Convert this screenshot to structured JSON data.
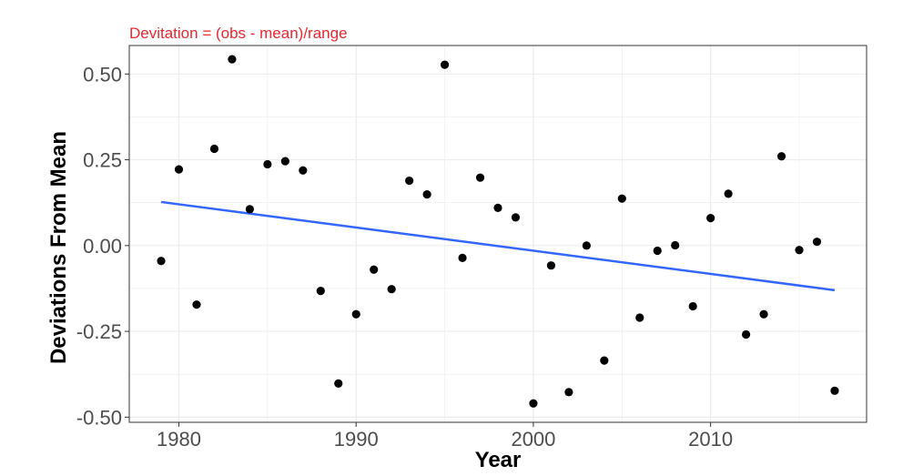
{
  "chart_data": {
    "type": "scatter",
    "subtitle": "Devitation = (obs - mean)/range",
    "xlabel": "Year",
    "ylabel": "Deviations From Mean",
    "xlim": [
      1977.2,
      2018.8
    ],
    "ylim": [
      -0.515,
      0.583
    ],
    "x_ticks": [
      1980,
      1990,
      2000,
      2010
    ],
    "x_tick_labels": [
      "1980",
      "1990",
      "2000",
      "2010"
    ],
    "y_ticks": [
      0.5,
      0.25,
      0.0,
      -0.25,
      -0.5
    ],
    "y_tick_labels": [
      "0.50",
      "0.25",
      "0.00",
      "-0.25",
      "-0.50"
    ],
    "grid": true,
    "points": {
      "x": [
        1979,
        1980,
        1981,
        1982,
        1983,
        1984,
        1985,
        1986,
        1987,
        1988,
        1989,
        1990,
        1991,
        1992,
        1993,
        1994,
        1995,
        1996,
        1997,
        1998,
        1999,
        2000,
        2001,
        2002,
        2003,
        2004,
        2005,
        2006,
        2007,
        2008,
        2009,
        2010,
        2011,
        2012,
        2013,
        2014,
        2015,
        2016,
        2017
      ],
      "y": [
        -0.045,
        0.222,
        -0.172,
        0.282,
        0.543,
        0.106,
        0.237,
        0.246,
        0.219,
        -0.132,
        -0.402,
        -0.2,
        -0.07,
        -0.127,
        0.189,
        0.149,
        0.527,
        -0.036,
        0.198,
        0.11,
        0.082,
        -0.46,
        -0.058,
        -0.427,
        0.0,
        -0.335,
        0.137,
        -0.21,
        -0.015,
        0.001,
        -0.177,
        0.08,
        0.151,
        -0.259,
        -0.2,
        0.26,
        -0.013,
        0.011,
        -0.423
      ],
      "color": "#000000"
    },
    "trend_line": {
      "x": [
        1979,
        2017
      ],
      "y": [
        0.127,
        -0.13
      ],
      "color": "#3366ff"
    },
    "colors": {
      "subtitle": "#e8262c",
      "grid": "#ebebeb",
      "panel_border": "#333333"
    }
  }
}
